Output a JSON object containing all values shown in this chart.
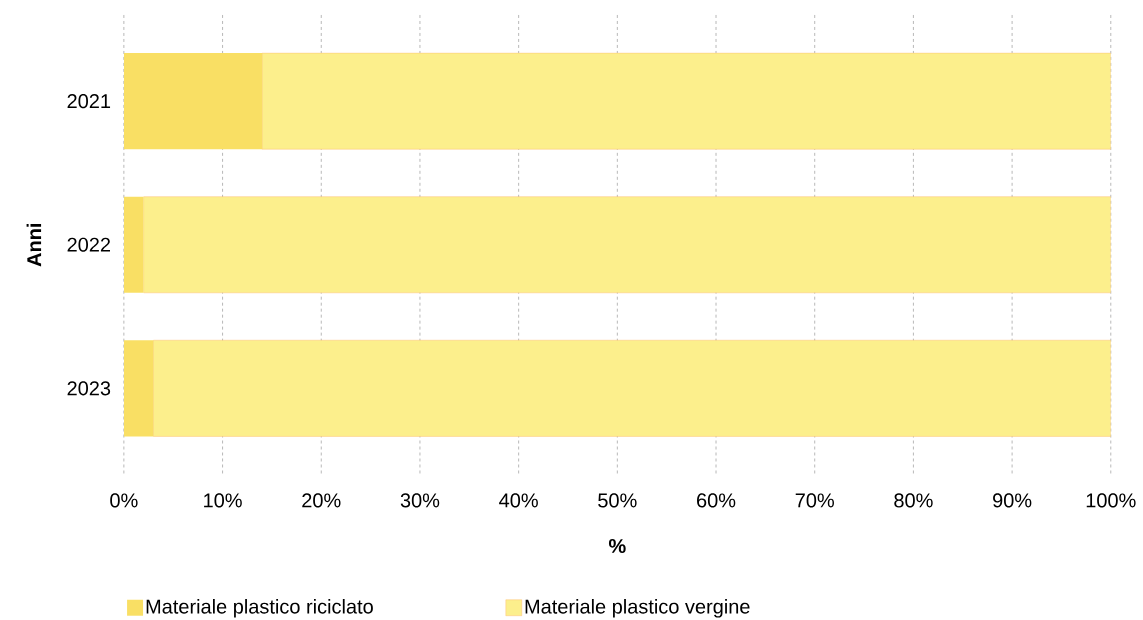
{
  "chart_data": {
    "type": "bar",
    "orientation": "horizontal",
    "stacked": true,
    "xlabel": "%",
    "ylabel": "Anni",
    "categories": [
      "2021",
      "2022",
      "2023"
    ],
    "series": [
      {
        "name": "Materiale plastico riciclato",
        "color": "#f9df64",
        "values": [
          14,
          2,
          3
        ]
      },
      {
        "name": "Materiale plastico vergine",
        "color": "#fcef8c",
        "values": [
          86,
          98,
          97
        ]
      }
    ],
    "xlim": [
      0,
      100
    ],
    "xticks": [
      {
        "value": 0,
        "label": "0%"
      },
      {
        "value": 10,
        "label": "10%"
      },
      {
        "value": 20,
        "label": "20%"
      },
      {
        "value": 30,
        "label": "30%"
      },
      {
        "value": 40,
        "label": "40%"
      },
      {
        "value": 50,
        "label": "50%"
      },
      {
        "value": 60,
        "label": "60%"
      },
      {
        "value": 70,
        "label": "70%"
      },
      {
        "value": 80,
        "label": "80%"
      },
      {
        "value": 90,
        "label": "90%"
      },
      {
        "value": 100,
        "label": "100%"
      }
    ],
    "grid": "x",
    "legend": "bottom"
  }
}
